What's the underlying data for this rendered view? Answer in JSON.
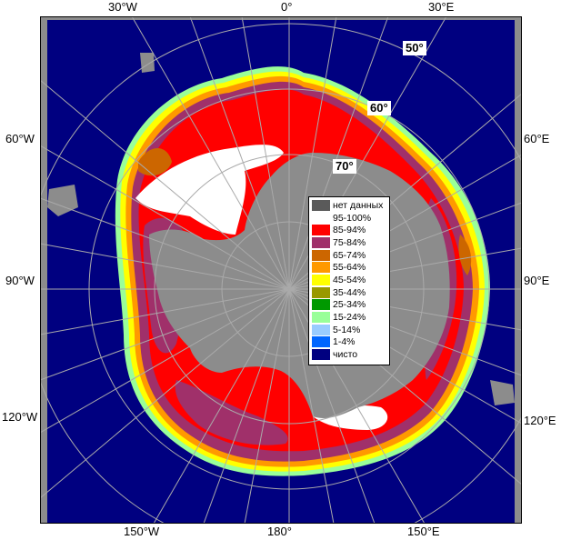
{
  "map": {
    "longitude_labels": {
      "w30": "30°W",
      "zero": "0°",
      "e30": "30°E",
      "w60": "60°W",
      "e60": "60°E",
      "w90": "90°W",
      "e90": "90°E",
      "w120": "120°W",
      "e120": "120°E",
      "w150": "150°W",
      "s180": "180°",
      "e150": "150°E"
    },
    "latitude_labels": {
      "lat50": "50°",
      "lat60": "60°",
      "lat70": "70°"
    }
  },
  "legend": {
    "items": [
      {
        "label": "нет данных",
        "color": "#5a5a5a"
      },
      {
        "label": "95-100%",
        "color": "#ffffff"
      },
      {
        "label": "85-94%",
        "color": "#ff0000"
      },
      {
        "label": "75-84%",
        "color": "#a0306a"
      },
      {
        "label": "65-74%",
        "color": "#cc6600"
      },
      {
        "label": "55-64%",
        "color": "#ff9900"
      },
      {
        "label": "45-54%",
        "color": "#ffff00"
      },
      {
        "label": "35-44%",
        "color": "#999900"
      },
      {
        "label": "25-34%",
        "color": "#009900"
      },
      {
        "label": "15-24%",
        "color": "#99ff99"
      },
      {
        "label": "5-14%",
        "color": "#99ccff"
      },
      {
        "label": "1-4%",
        "color": "#0066ff"
      },
      {
        "label": "чисто",
        "color": "#000080"
      }
    ]
  },
  "colors": {
    "ocean": "#000080",
    "land": "#8c8c8c",
    "graticule": "#aaaaaa"
  }
}
